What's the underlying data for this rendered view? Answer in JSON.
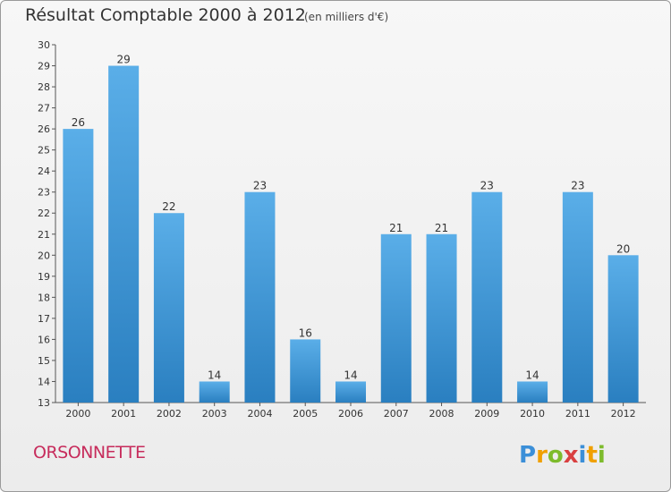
{
  "title": "Résultat Comptable 2000 à 2012",
  "subtitle": "(en milliers d'€)",
  "location": "ORSONNETTE",
  "logo_text": "Proxiti",
  "colors": {
    "bar_top": "#5aaee8",
    "bar_bottom": "#2a7fc0",
    "location": "#c72c5c"
  },
  "chart_data": {
    "type": "bar",
    "categories": [
      "2000",
      "2001",
      "2002",
      "2003",
      "2004",
      "2005",
      "2006",
      "2007",
      "2008",
      "2009",
      "2010",
      "2011",
      "2012"
    ],
    "values": [
      26,
      29,
      22,
      14,
      23,
      16,
      14,
      21,
      21,
      23,
      14,
      23,
      20
    ],
    "ylim": [
      13,
      30
    ],
    "yticks": [
      13,
      14,
      15,
      16,
      17,
      18,
      19,
      20,
      21,
      22,
      23,
      24,
      25,
      26,
      27,
      28,
      29,
      30
    ],
    "grid": false,
    "data_labels": true
  }
}
